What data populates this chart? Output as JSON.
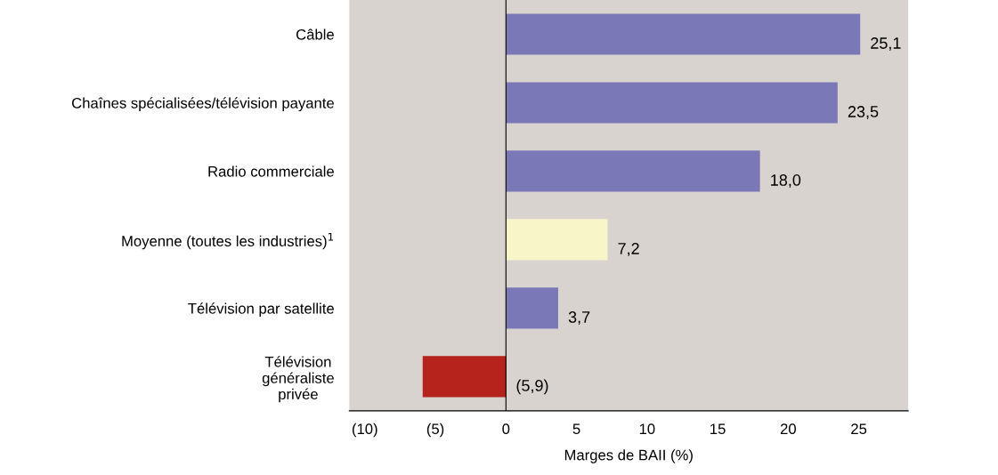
{
  "chart_data": {
    "type": "bar",
    "orientation": "horizontal",
    "xlabel": "Marges de BAII (%)",
    "categories": [
      "Câble",
      "Chaînes spécialisées/télévision payante",
      "Radio commerciale",
      "Moyenne (toutes les industries)$^{1}$",
      "Télévision par satellite",
      "Télévision\ngénéraliste\nprivée"
    ],
    "values": [
      25.1,
      23.5,
      18.0,
      7.2,
      3.7,
      -5.9
    ],
    "colors": [
      "#7b78b8",
      "#7b78b8",
      "#7b78b8",
      "#f8f6c8",
      "#7b78b8",
      "#b5231c"
    ],
    "value_labels": [
      "25,1",
      "23,5",
      "18,0",
      "7,2",
      "3,7",
      "(5,9)"
    ],
    "xlim": [
      -11.1,
      28.5
    ],
    "xticks": [
      {
        "value": -10,
        "label": "(10)"
      },
      {
        "value": -5,
        "label": "(5)"
      },
      0,
      5,
      10,
      15,
      20,
      25
    ],
    "ref_lines": [
      {
        "axis": "x",
        "value": 0,
        "color": "#000000"
      }
    ],
    "grid": false,
    "legend": false
  }
}
